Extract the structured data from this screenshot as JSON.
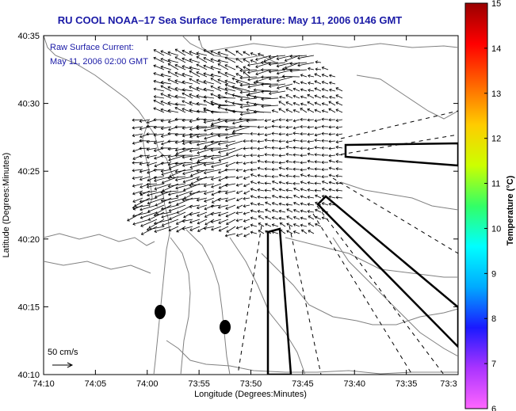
{
  "title": "RU COOL  NOAA–17  Sea Surface Temperature:  May 11, 2006 0146 GMT",
  "annotation": {
    "line1": "Raw Surface Current:",
    "line2": "May 11, 2006 02:00 GMT"
  },
  "scale": {
    "label": "50 cm/s"
  },
  "axes": {
    "x_label": "Longitude (Degrees:Minutes)",
    "y_label": "Latitude (Degrees:Minutes)",
    "x_ticks": [
      "74:10",
      "74:05",
      "74:00",
      "73:55",
      "73:50",
      "73:45",
      "73:40",
      "73:35",
      "73:3"
    ],
    "y_ticks": [
      "40:35",
      "40:30",
      "40:25",
      "40:20",
      "40:15",
      "40:10"
    ]
  },
  "colorbar": {
    "label": "Temperature (°C)",
    "ticks": [
      "15",
      "14",
      "13",
      "12",
      "11",
      "10",
      "9",
      "8",
      "7",
      "6"
    ],
    "min": 6,
    "max": 15,
    "colors": [
      "#ff66ff",
      "#aa33ff",
      "#1a1aff",
      "#00aaff",
      "#00ffff",
      "#33ff66",
      "#ccff00",
      "#ffcc00",
      "#ff6600",
      "#ff0000",
      "#990000"
    ]
  },
  "colors": {
    "title": "#1a1aa6",
    "land_contour": "#808080",
    "vector": "#000000"
  }
}
